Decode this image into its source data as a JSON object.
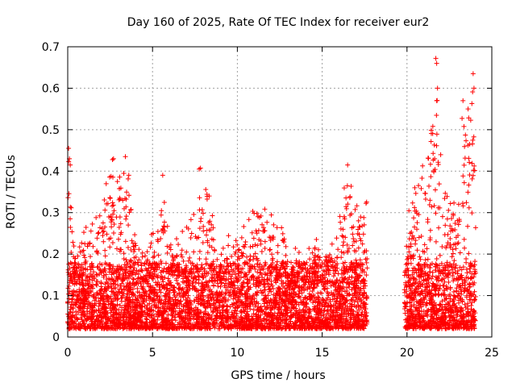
{
  "chart_data": {
    "type": "scatter",
    "title": "Day 160 of 2025, Rate Of TEC Index for receiver eur2",
    "xlabel": "GPS time / hours",
    "ylabel": "ROTI / TECUs",
    "xlim": [
      0,
      25
    ],
    "ylim": [
      0,
      0.7
    ],
    "xticks": [
      0,
      5,
      10,
      15,
      20,
      25
    ],
    "yticks": [
      0,
      0.1,
      0.2,
      0.3,
      0.4,
      0.5,
      0.6,
      0.7
    ],
    "grid": true,
    "marker": "+",
    "series_color": "#ff0000",
    "segments": [
      {
        "start": 0.0,
        "end": 17.65
      },
      {
        "start": 19.85,
        "end": 24.05
      }
    ],
    "envelope": [
      [
        0.0,
        0.46
      ],
      [
        0.5,
        0.2
      ],
      [
        1.0,
        0.27
      ],
      [
        1.5,
        0.28
      ],
      [
        2.0,
        0.34
      ],
      [
        2.5,
        0.44
      ],
      [
        3.0,
        0.4
      ],
      [
        3.5,
        0.44
      ],
      [
        4.0,
        0.24
      ],
      [
        4.5,
        0.2
      ],
      [
        5.0,
        0.26
      ],
      [
        5.5,
        0.4
      ],
      [
        6.0,
        0.23
      ],
      [
        6.5,
        0.25
      ],
      [
        7.0,
        0.28
      ],
      [
        7.5,
        0.33
      ],
      [
        7.8,
        0.41
      ],
      [
        8.3,
        0.37
      ],
      [
        8.8,
        0.2
      ],
      [
        9.3,
        0.24
      ],
      [
        10.0,
        0.29
      ],
      [
        10.5,
        0.29
      ],
      [
        11.0,
        0.31
      ],
      [
        11.5,
        0.34
      ],
      [
        12.0,
        0.3
      ],
      [
        12.5,
        0.28
      ],
      [
        13.0,
        0.2
      ],
      [
        13.5,
        0.22
      ],
      [
        14.0,
        0.21
      ],
      [
        14.5,
        0.23
      ],
      [
        15.0,
        0.25
      ],
      [
        15.5,
        0.22
      ],
      [
        16.0,
        0.28
      ],
      [
        16.5,
        0.42
      ],
      [
        17.0,
        0.32
      ],
      [
        17.5,
        0.34
      ],
      [
        19.9,
        0.23
      ],
      [
        20.3,
        0.37
      ],
      [
        20.8,
        0.43
      ],
      [
        21.3,
        0.45
      ],
      [
        21.7,
        0.68
      ],
      [
        22.0,
        0.47
      ],
      [
        22.5,
        0.32
      ],
      [
        23.0,
        0.35
      ],
      [
        23.3,
        0.57
      ],
      [
        23.6,
        0.55
      ],
      [
        23.9,
        0.64
      ],
      [
        24.05,
        0.4
      ]
    ],
    "highlights": [
      {
        "x": 0.05,
        "y": 0.455
      },
      {
        "x": 0.1,
        "y": 0.43
      },
      {
        "x": 0.15,
        "y": 0.415
      },
      {
        "x": 2.7,
        "y": 0.43
      },
      {
        "x": 3.4,
        "y": 0.435
      },
      {
        "x": 3.6,
        "y": 0.39
      },
      {
        "x": 5.6,
        "y": 0.39
      },
      {
        "x": 7.75,
        "y": 0.405
      },
      {
        "x": 16.5,
        "y": 0.415
      },
      {
        "x": 21.7,
        "y": 0.672
      },
      {
        "x": 21.75,
        "y": 0.66
      },
      {
        "x": 21.8,
        "y": 0.6
      },
      {
        "x": 21.75,
        "y": 0.57
      },
      {
        "x": 23.9,
        "y": 0.635
      },
      {
        "x": 23.95,
        "y": 0.6
      },
      {
        "x": 23.3,
        "y": 0.57
      },
      {
        "x": 23.6,
        "y": 0.55
      }
    ]
  }
}
